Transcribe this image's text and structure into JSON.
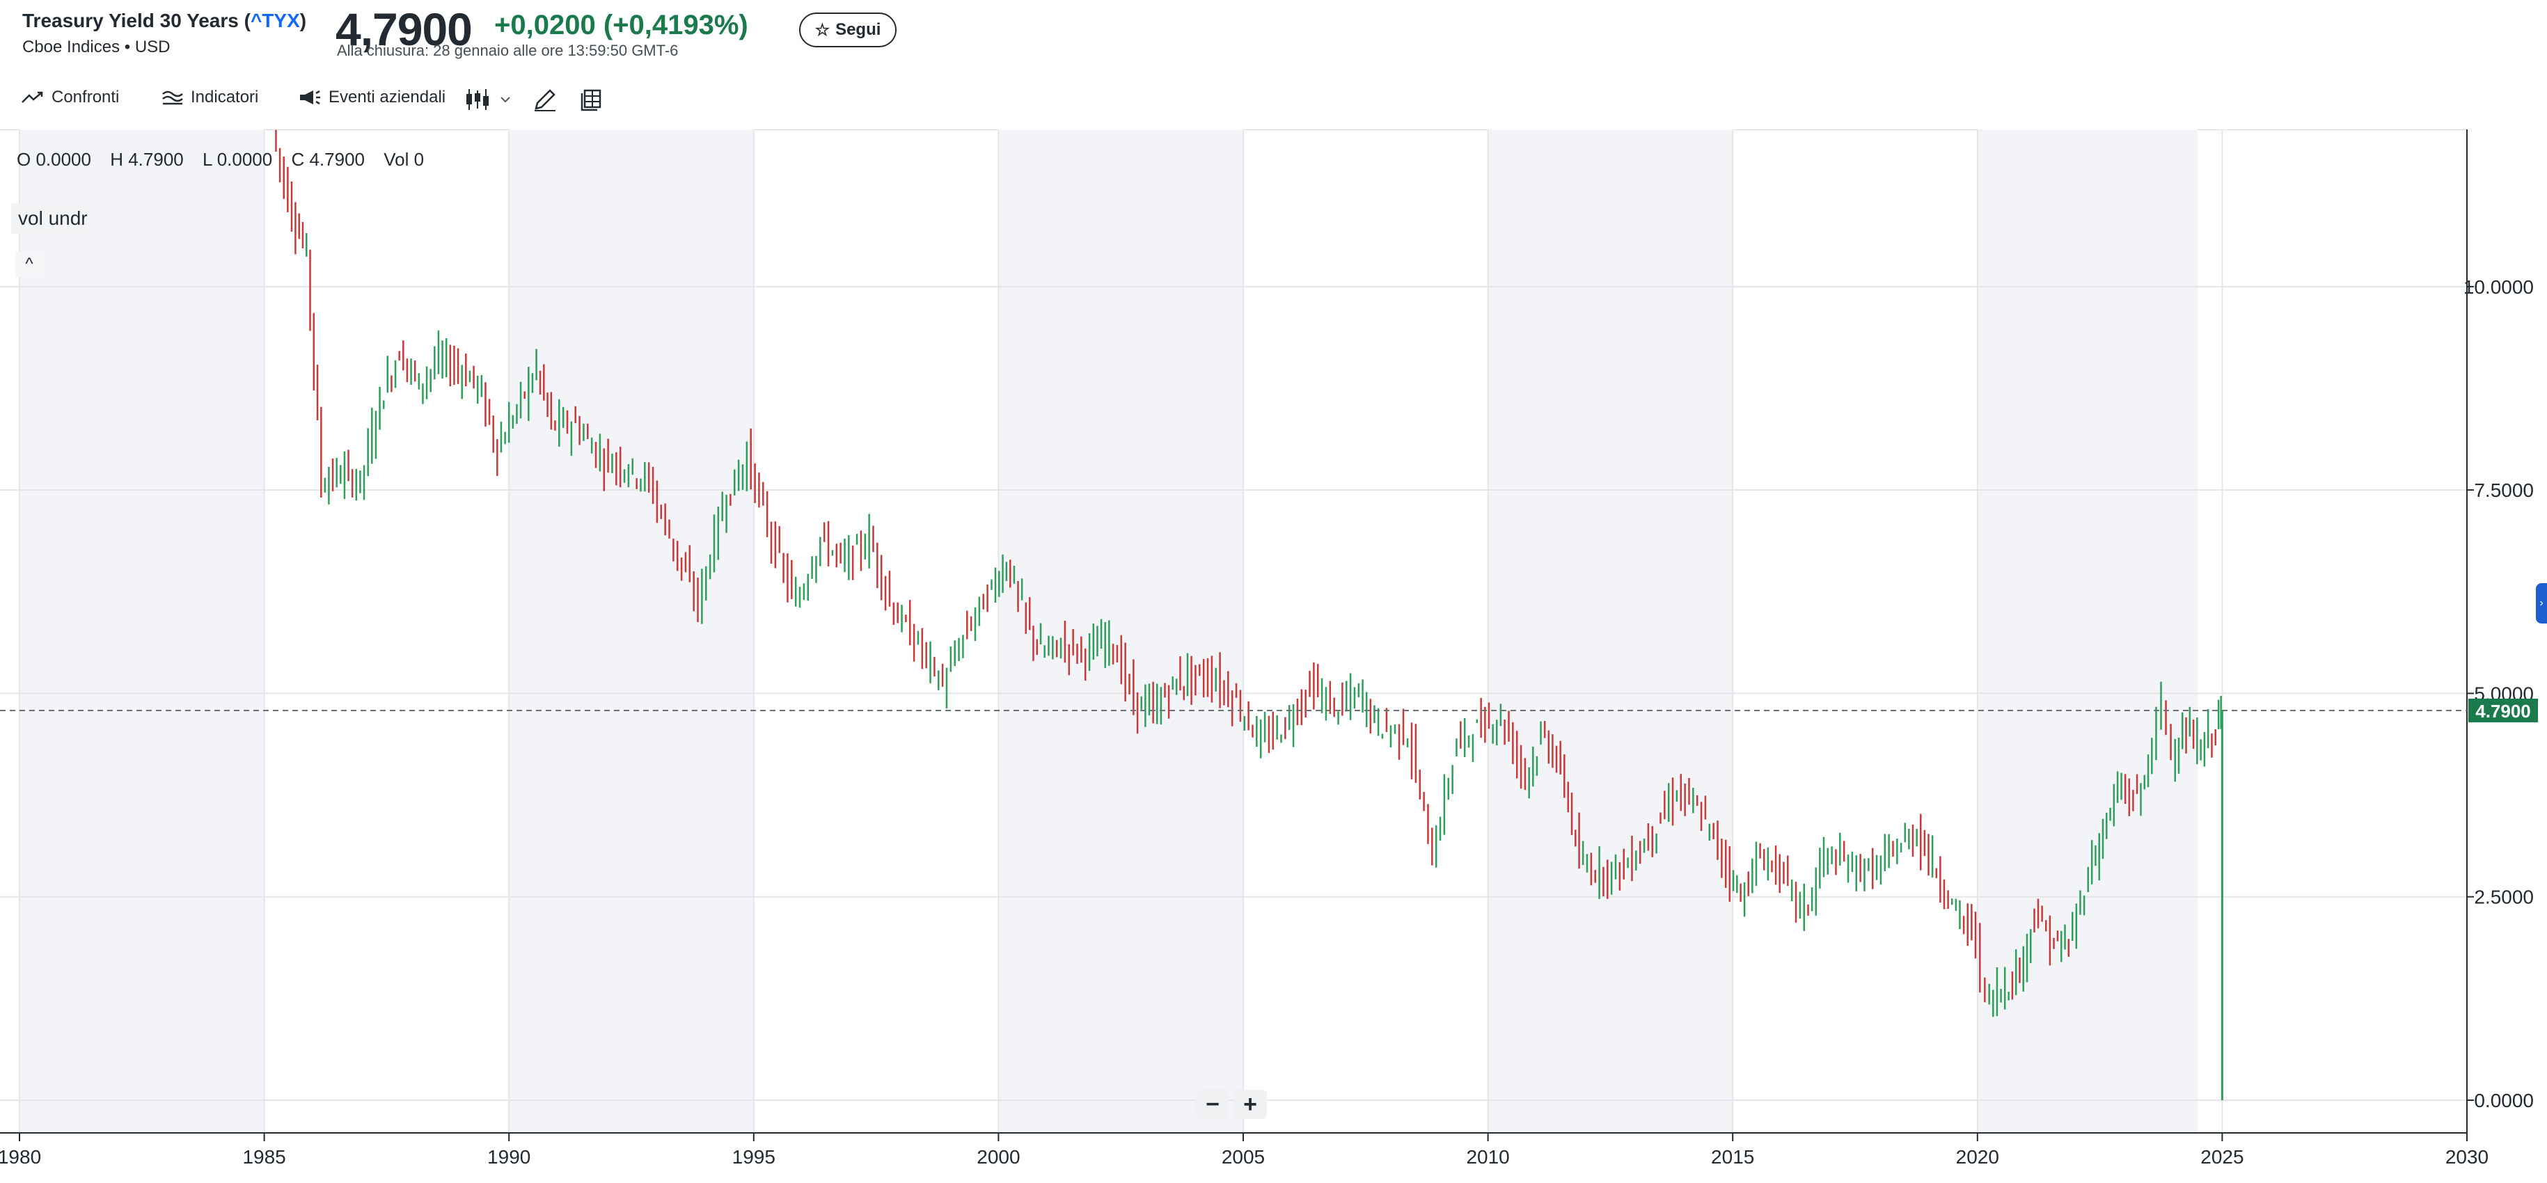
{
  "header": {
    "name": "Treasury Yield 30 Years (",
    "ticker": "^TYX",
    "name_close": ")",
    "exchange": "Cboe Indices • USD",
    "price": "4,7900",
    "change": "+0,0200",
    "change_pct": "(+0,4193%)",
    "time": "Alla chiusura: 28 gennaio alle ore 13:59:50 GMT-6",
    "follow_label": "Segui"
  },
  "toolbar": {
    "compare": "Confronti",
    "indicators": "Indicatori",
    "events": "Eventi aziendali"
  },
  "legend": {
    "o": "O 0.0000",
    "h": "H 4.7900",
    "l": "L 0.0000",
    "c": "C 4.7900",
    "vol": "Vol 0",
    "vol_label": "vol undr",
    "collapse": "^"
  },
  "zoom": {
    "minus": "−",
    "plus": "+"
  },
  "side_tab": "›",
  "colors": {
    "up": "#2e9e5b",
    "down": "#c73a3a",
    "accent": "#1a7a4c",
    "ticker": "#0f69ff",
    "shade": "#f3f4f8"
  },
  "chart_data": {
    "type": "line",
    "series": [],
    "x_ticks": [
      "1980",
      "1985",
      "1990",
      "1995",
      "2000",
      "2005",
      "2010",
      "2015",
      "2020",
      "2025",
      "2030"
    ],
    "y_ticks": [
      "10.0000",
      "7.5000",
      "5.0000",
      "2.5000",
      "0.0000"
    ],
    "xlim": [
      1980,
      2030
    ],
    "ylim": [
      0,
      12
    ],
    "last_price": 4.79,
    "last_price_label": "4.7900",
    "shaded_spans": [
      [
        1980,
        1985
      ],
      [
        1990,
        1995
      ],
      [
        2000,
        2005
      ],
      [
        2010,
        2015
      ],
      [
        2020,
        2024.5
      ]
    ],
    "points": [
      [
        1985.2,
        11.9
      ],
      [
        1985.6,
        10.9
      ],
      [
        1985.9,
        10.4
      ],
      [
        1986.2,
        7.6
      ],
      [
        1986.6,
        7.7
      ],
      [
        1987.0,
        7.6
      ],
      [
        1987.4,
        8.6
      ],
      [
        1987.8,
        9.2
      ],
      [
        1988.2,
        8.8
      ],
      [
        1988.6,
        9.1
      ],
      [
        1989.0,
        9.0
      ],
      [
        1989.4,
        8.8
      ],
      [
        1989.8,
        8.0
      ],
      [
        1990.2,
        8.5
      ],
      [
        1990.6,
        9.0
      ],
      [
        1990.9,
        8.3
      ],
      [
        1991.4,
        8.3
      ],
      [
        1991.9,
        7.9
      ],
      [
        1992.4,
        7.8
      ],
      [
        1992.9,
        7.6
      ],
      [
        1993.4,
        6.8
      ],
      [
        1993.9,
        6.1
      ],
      [
        1994.4,
        7.3
      ],
      [
        1994.9,
        7.9
      ],
      [
        1995.4,
        6.9
      ],
      [
        1995.9,
        6.1
      ],
      [
        1996.4,
        6.9
      ],
      [
        1996.9,
        6.6
      ],
      [
        1997.4,
        6.9
      ],
      [
        1997.9,
        6.0
      ],
      [
        1998.4,
        5.6
      ],
      [
        1998.9,
        5.1
      ],
      [
        1999.4,
        5.8
      ],
      [
        1999.9,
        6.3
      ],
      [
        2000.2,
        6.6
      ],
      [
        2000.6,
        5.9
      ],
      [
        2000.9,
        5.5
      ],
      [
        2001.4,
        5.6
      ],
      [
        2001.9,
        5.5
      ],
      [
        2002.3,
        5.7
      ],
      [
        2002.8,
        4.9
      ],
      [
        2003.2,
        4.8
      ],
      [
        2003.6,
        5.1
      ],
      [
        2003.9,
        5.2
      ],
      [
        2004.4,
        5.2
      ],
      [
        2004.9,
        4.9
      ],
      [
        2005.4,
        4.4
      ],
      [
        2005.9,
        4.6
      ],
      [
        2006.4,
        5.1
      ],
      [
        2006.9,
        4.8
      ],
      [
        2007.4,
        5.0
      ],
      [
        2007.8,
        4.6
      ],
      [
        2008.4,
        4.5
      ],
      [
        2008.9,
        3.0
      ],
      [
        2009.4,
        4.4
      ],
      [
        2009.9,
        4.6
      ],
      [
        2010.3,
        4.7
      ],
      [
        2010.8,
        4.0
      ],
      [
        2011.2,
        4.5
      ],
      [
        2011.6,
        3.9
      ],
      [
        2011.9,
        2.9
      ],
      [
        2012.4,
        2.8
      ],
      [
        2012.9,
        2.9
      ],
      [
        2013.4,
        3.3
      ],
      [
        2013.9,
        3.8
      ],
      [
        2014.4,
        3.5
      ],
      [
        2014.9,
        2.9
      ],
      [
        2015.2,
        2.5
      ],
      [
        2015.6,
        3.0
      ],
      [
        2016.0,
        2.8
      ],
      [
        2016.5,
        2.3
      ],
      [
        2016.9,
        3.0
      ],
      [
        2017.4,
        2.9
      ],
      [
        2017.9,
        2.8
      ],
      [
        2018.4,
        3.1
      ],
      [
        2018.8,
        3.3
      ],
      [
        2019.2,
        2.8
      ],
      [
        2019.6,
        2.3
      ],
      [
        2020.0,
        2.0
      ],
      [
        2020.2,
        1.2
      ],
      [
        2020.6,
        1.4
      ],
      [
        2020.9,
        1.6
      ],
      [
        2021.2,
        2.3
      ],
      [
        2021.6,
        1.9
      ],
      [
        2021.9,
        1.9
      ],
      [
        2022.3,
        2.8
      ],
      [
        2022.6,
        3.3
      ],
      [
        2022.9,
        3.8
      ],
      [
        2023.3,
        3.7
      ],
      [
        2023.6,
        4.3
      ],
      [
        2023.8,
        4.9
      ],
      [
        2024.0,
        4.3
      ],
      [
        2024.3,
        4.5
      ],
      [
        2024.6,
        4.3
      ],
      [
        2024.9,
        4.6
      ],
      [
        2025.0,
        4.79
      ]
    ]
  }
}
